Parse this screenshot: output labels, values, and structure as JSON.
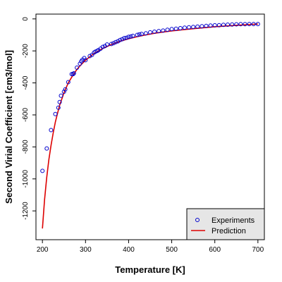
{
  "chart_data": {
    "type": "scatter",
    "title": "",
    "xlabel": "Temperature [K]",
    "ylabel": "Second Virial Coefficient [cm3/mol]",
    "xlim": [
      185,
      715
    ],
    "ylim": [
      -1380,
      30
    ],
    "xticks": [
      "200",
      "300",
      "400",
      "500",
      "600",
      "700"
    ],
    "yticks": [
      "0",
      "-200",
      "-400",
      "-600",
      "-800",
      "-1000",
      "-1200"
    ],
    "xtick_values": [
      200,
      300,
      400,
      500,
      600,
      700
    ],
    "ytick_values": [
      0,
      -200,
      -400,
      -600,
      -800,
      -1000,
      -1200
    ],
    "legend_position": "bottom-right",
    "colors": {
      "experiments": "#0000cc",
      "prediction": "#dd0000",
      "legend_bg": "#e6e6e6"
    },
    "series": [
      {
        "name": "Experiments",
        "kind": "points",
        "x": [
          200,
          210,
          220,
          230,
          237,
          240,
          243,
          250,
          253,
          260,
          268,
          271,
          273,
          280,
          287,
          290,
          293,
          297,
          300,
          310,
          315,
          320,
          323,
          327,
          330,
          335,
          340,
          345,
          350,
          360,
          365,
          370,
          375,
          380,
          385,
          390,
          395,
          400,
          405,
          410,
          420,
          425,
          430,
          440,
          450,
          460,
          470,
          480,
          490,
          500,
          510,
          520,
          530,
          540,
          550,
          560,
          570,
          580,
          590,
          600,
          610,
          620,
          630,
          640,
          650,
          660,
          670,
          680,
          690,
          700
        ],
        "y": [
          -950,
          -810,
          -695,
          -595,
          -555,
          -520,
          -480,
          -455,
          -440,
          -395,
          -345,
          -345,
          -340,
          -305,
          -280,
          -265,
          -255,
          -245,
          -258,
          -232,
          -225,
          -210,
          -205,
          -200,
          -195,
          -186,
          -175,
          -170,
          -160,
          -157,
          -152,
          -145,
          -140,
          -132,
          -127,
          -120,
          -118,
          -112,
          -110,
          -106,
          -100,
          -97,
          -94,
          -90,
          -84,
          -80,
          -76,
          -73,
          -68,
          -64,
          -61,
          -58,
          -55,
          -53,
          -50,
          -48,
          -46,
          -44,
          -42,
          -40,
          -39,
          -37,
          -36,
          -35,
          -34,
          -33,
          -33,
          -32,
          -32,
          -32
        ]
      },
      {
        "name": "Prediction",
        "kind": "line",
        "x": [
          200,
          205,
          210,
          215,
          220,
          225,
          230,
          235,
          240,
          250,
          260,
          270,
          280,
          290,
          300,
          320,
          340,
          360,
          380,
          400,
          420,
          440,
          460,
          480,
          500,
          550,
          600,
          650,
          700
        ],
        "y": [
          -1310,
          -1130,
          -990,
          -880,
          -790,
          -712,
          -645,
          -590,
          -540,
          -462,
          -400,
          -355,
          -316,
          -285,
          -258,
          -216,
          -185,
          -160,
          -140,
          -124,
          -111,
          -100,
          -90,
          -82,
          -75,
          -61,
          -49,
          -40,
          -32
        ]
      }
    ]
  }
}
